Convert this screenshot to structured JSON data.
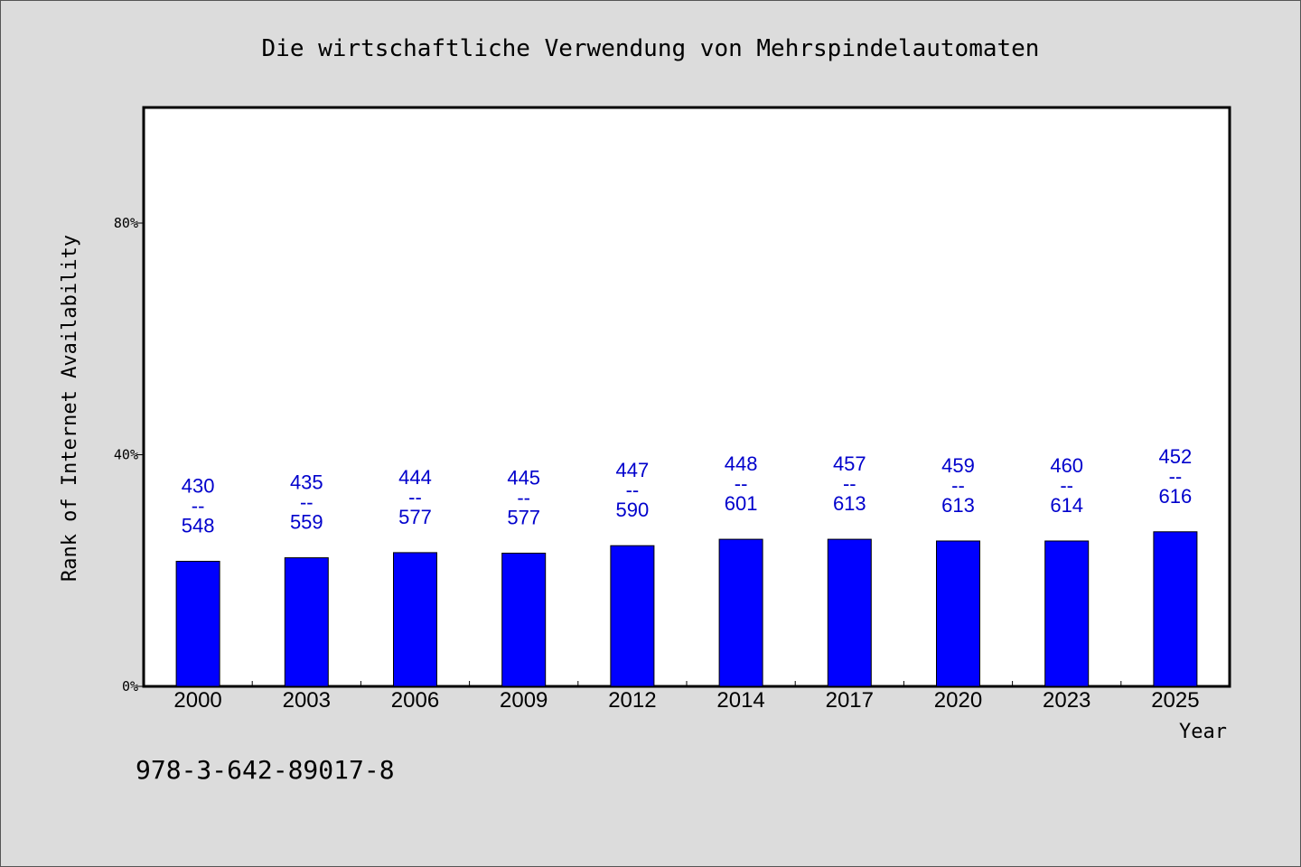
{
  "chart_data": {
    "type": "bar",
    "title": "Die wirtschaftliche Verwendung von Mehrspindelautomaten",
    "xlabel": "Year",
    "ylabel": "Rank of Internet Availability",
    "categories": [
      "2000",
      "2003",
      "2006",
      "2009",
      "2012",
      "2014",
      "2017",
      "2020",
      "2023",
      "2025"
    ],
    "series": [
      {
        "values": [
          21.6,
          22.2,
          23.1,
          23.0,
          24.3,
          25.4,
          25.4,
          25.1,
          25.1,
          26.7
        ]
      }
    ],
    "data_labels": [
      {
        "top": "430",
        "sep": "--",
        "bottom": "548"
      },
      {
        "top": "435",
        "sep": "--",
        "bottom": "559"
      },
      {
        "top": "444",
        "sep": "--",
        "bottom": "577"
      },
      {
        "top": "445",
        "sep": "--",
        "bottom": "577"
      },
      {
        "top": "447",
        "sep": "--",
        "bottom": "590"
      },
      {
        "top": "448",
        "sep": "--",
        "bottom": "601"
      },
      {
        "top": "457",
        "sep": "--",
        "bottom": "613"
      },
      {
        "top": "459",
        "sep": "--",
        "bottom": "613"
      },
      {
        "top": "460",
        "sep": "--",
        "bottom": "614"
      },
      {
        "top": "452",
        "sep": "--",
        "bottom": "616"
      }
    ],
    "yticks": [
      {
        "value": 0,
        "label": "0%"
      },
      {
        "value": 40,
        "label": "40%"
      },
      {
        "value": 80,
        "label": "80%"
      }
    ],
    "ylim": [
      0,
      100
    ],
    "grid": false,
    "colors": {
      "bar": "#0000ff",
      "label": "#0000cc",
      "background": "#dcdcdc",
      "plot": "#ffffff"
    }
  },
  "footer_text": "978-3-642-89017-8"
}
